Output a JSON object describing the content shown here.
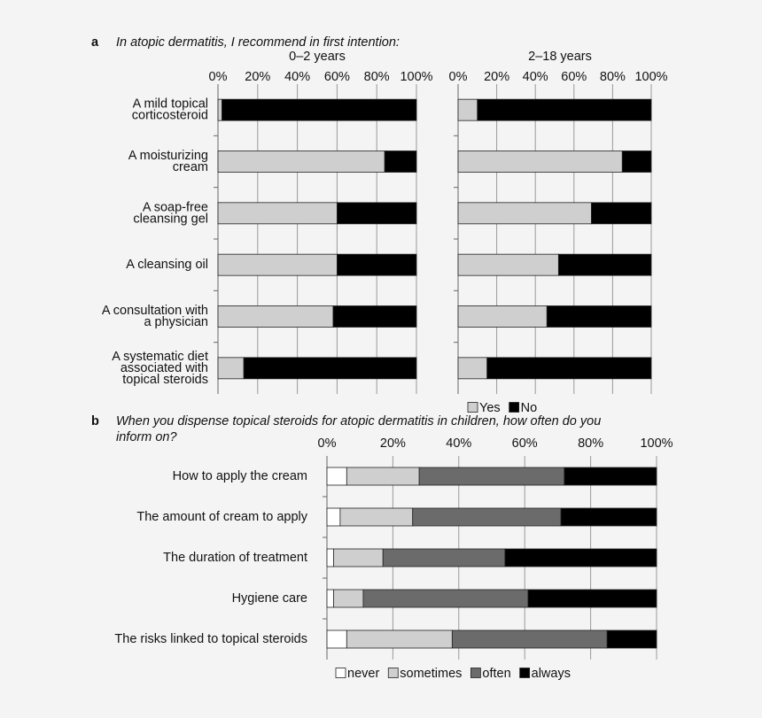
{
  "chart_data": [
    {
      "type": "hbar_stacked",
      "panel": "a",
      "title": "In atopic dermatitis, I recommend in first intention:",
      "subtitle": "0–2 years",
      "categories": [
        "A mild topical\ncorticosteroid",
        "A moisturizing\ncream",
        "A soap-free\ncleansing gel",
        "A cleansing oil",
        "A consultation with\na physician",
        "A systematic diet\nassociated with\ntopical steroids"
      ],
      "series": [
        {
          "name": "Yes",
          "color": "#cfcfcf",
          "values": [
            2,
            84,
            60,
            60,
            58,
            13
          ]
        },
        {
          "name": "No",
          "color": "#000000",
          "values": [
            98,
            16,
            40,
            40,
            42,
            87
          ]
        }
      ],
      "xlim": [
        0,
        100
      ],
      "xticks": [
        {
          "value": 0,
          "label": "0%"
        },
        {
          "value": 20,
          "label": "20%"
        },
        {
          "value": 40,
          "label": "40%"
        },
        {
          "value": 60,
          "label": "60%"
        },
        {
          "value": 80,
          "label": "80%"
        },
        {
          "value": 100,
          "label": "100%"
        }
      ],
      "grid": true
    },
    {
      "type": "hbar_stacked",
      "subtitle": "2–18 years",
      "series": [
        {
          "color": "#cfcfcf",
          "values": [
            10,
            85,
            69,
            52,
            46,
            15
          ]
        },
        {
          "color": "#000000",
          "values": [
            90,
            15,
            31,
            48,
            54,
            85
          ]
        }
      ],
      "xlim": [
        0,
        100
      ],
      "xticks": [
        {
          "value": 0,
          "label": "0%"
        },
        {
          "value": 20,
          "label": "20%"
        },
        {
          "value": 40,
          "label": "40%"
        },
        {
          "value": 60,
          "label": "60%"
        },
        {
          "value": 80,
          "label": "80%"
        },
        {
          "value": 100,
          "label": "100%"
        }
      ],
      "grid": true
    },
    {
      "type": "hbar_stacked",
      "panel": "b",
      "title": "When you dispense topical steroids for atopic dermatitis in children, how often do you\ninform on?",
      "categories": [
        "How to apply the cream",
        "The amount of cream to apply",
        "The duration of treatment",
        "Hygiene care",
        "The risks linked to topical steroids"
      ],
      "series": [
        {
          "name": "never",
          "color": "#ffffff",
          "values": [
            6,
            4,
            2,
            2,
            6
          ]
        },
        {
          "name": "sometimes",
          "color": "#cfcfcf",
          "values": [
            22,
            22,
            15,
            9,
            32
          ]
        },
        {
          "name": "often",
          "color": "#6b6b6b",
          "values": [
            44,
            45,
            37,
            50,
            47
          ]
        },
        {
          "name": "always",
          "color": "#000000",
          "values": [
            28,
            29,
            46,
            39,
            15
          ]
        }
      ],
      "xlim": [
        0,
        100
      ],
      "xticks": [
        {
          "value": 0,
          "label": "0%"
        },
        {
          "value": 20,
          "label": "20%"
        },
        {
          "value": 40,
          "label": "40%"
        },
        {
          "value": 60,
          "label": "60%"
        },
        {
          "value": 80,
          "label": "80%"
        },
        {
          "value": 100,
          "label": "100%"
        }
      ],
      "grid": true
    }
  ]
}
